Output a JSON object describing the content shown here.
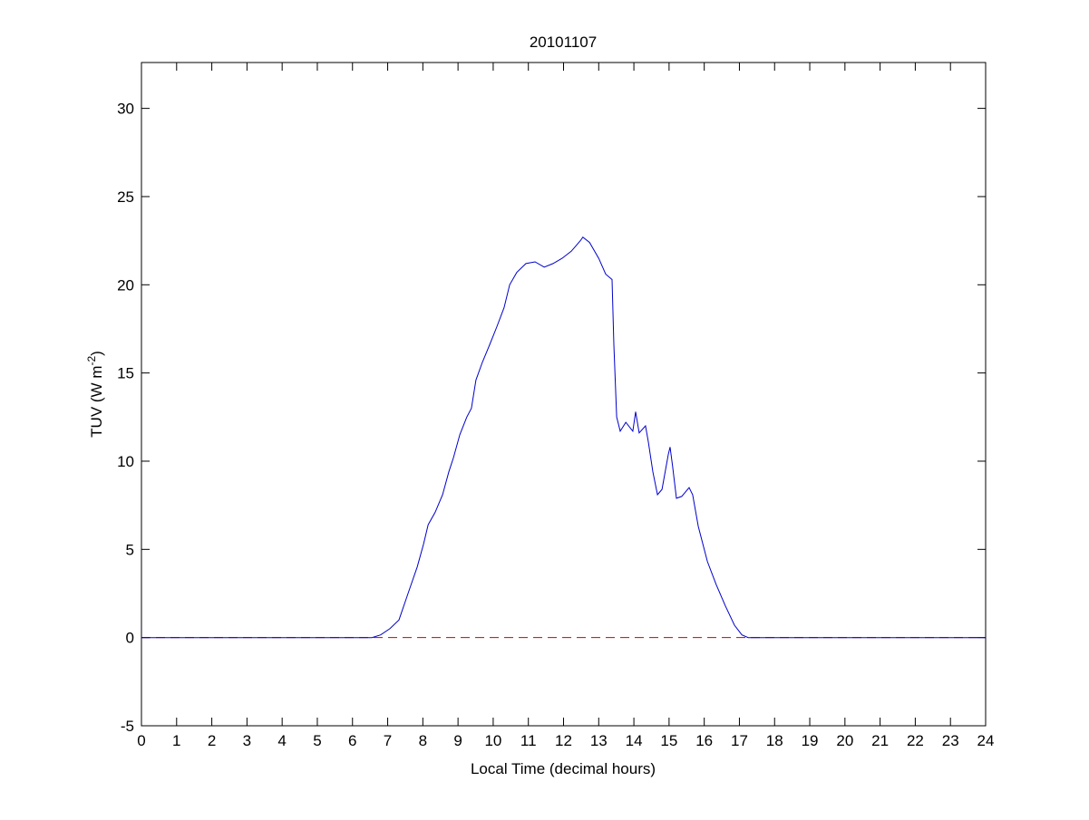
{
  "chart_data": {
    "type": "line",
    "title": "20101107",
    "xlabel": "Local Time (decimal hours)",
    "ylabel": "TUV (W m",
    "ylabel_sup": "-2",
    "ylabel_close": ")",
    "xlim": [
      0,
      24
    ],
    "ylim": [
      -5,
      32.6
    ],
    "xticks": [
      0,
      1,
      2,
      3,
      4,
      5,
      6,
      7,
      8,
      9,
      10,
      11,
      12,
      13,
      14,
      15,
      16,
      17,
      18,
      19,
      20,
      21,
      22,
      23,
      24
    ],
    "yticks": [
      -5,
      0,
      5,
      10,
      15,
      20,
      25,
      30
    ],
    "grid": false,
    "colors": {
      "series": "#0000cc",
      "reference": "#cc0000"
    },
    "reference_line": {
      "y": 0,
      "style": "dashed"
    },
    "series": [
      {
        "x": [
          0,
          6.55,
          6.8,
          7.06,
          7.32,
          7.58,
          7.84,
          8.02,
          8.15,
          8.35,
          8.56,
          8.74,
          8.87,
          9.05,
          9.25,
          9.38,
          9.51,
          9.69,
          9.9,
          10.1,
          10.31,
          10.47,
          10.67,
          10.93,
          11.19,
          11.45,
          11.7,
          11.96,
          12.22,
          12.48,
          12.55,
          12.74,
          13.0,
          13.2,
          13.38,
          13.43,
          13.51,
          13.61,
          13.77,
          13.97,
          14.05,
          14.15,
          14.33,
          14.41,
          14.54,
          14.67,
          14.8,
          14.98,
          15.03,
          15.1,
          15.21,
          15.36,
          15.57,
          15.67,
          15.83,
          16.09,
          16.34,
          16.6,
          16.86,
          17.07,
          17.25,
          24
        ],
        "y": [
          0,
          0,
          0.15,
          0.5,
          1.0,
          2.5,
          4.0,
          5.3,
          6.4,
          7.1,
          8.1,
          9.4,
          10.2,
          11.5,
          12.5,
          13.0,
          14.6,
          15.6,
          16.6,
          17.6,
          18.7,
          20.0,
          20.7,
          21.2,
          21.3,
          21.0,
          21.2,
          21.5,
          21.9,
          22.5,
          22.7,
          22.4,
          21.5,
          20.6,
          20.3,
          16.6,
          12.5,
          11.7,
          12.2,
          11.7,
          12.8,
          11.6,
          12.0,
          11.1,
          9.4,
          8.1,
          8.4,
          10.4,
          10.8,
          9.7,
          7.9,
          8.0,
          8.5,
          8.1,
          6.3,
          4.3,
          3.0,
          1.8,
          0.7,
          0.15,
          0,
          0
        ]
      }
    ]
  }
}
